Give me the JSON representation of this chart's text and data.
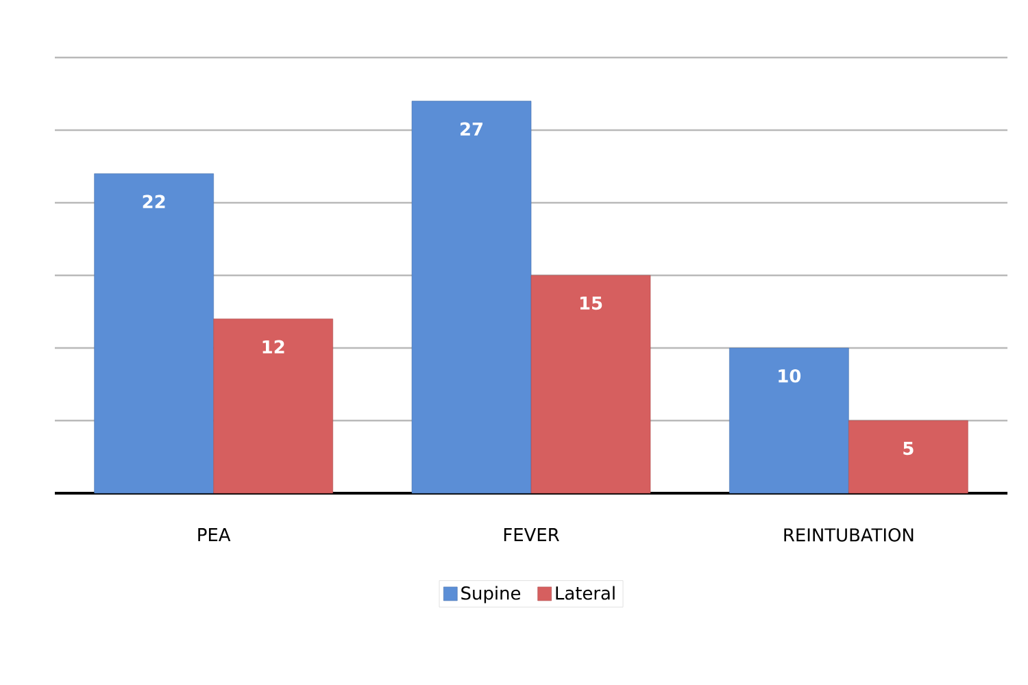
{
  "chart_data": {
    "type": "bar",
    "categories": [
      "PEA",
      "FEVER",
      "REINTUBATION"
    ],
    "series": [
      {
        "name": "Supine",
        "color": "#5b8ed6",
        "values": [
          22,
          27,
          10
        ]
      },
      {
        "name": "Lateral",
        "color": "#d65f5f",
        "values": [
          12,
          15,
          5
        ]
      }
    ],
    "ylim": [
      0,
      30
    ],
    "yticks": [
      {
        "value": 0,
        "label": null
      },
      {
        "value": 5,
        "label": null
      },
      {
        "value": 10,
        "label": null
      },
      {
        "value": 15,
        "label": null
      },
      {
        "value": 20,
        "label": null
      },
      {
        "value": 25,
        "label": null
      },
      {
        "value": 30,
        "label": null
      }
    ],
    "tick_labels": "x",
    "grid": "y",
    "legend": "bottom",
    "data_labels": true
  }
}
